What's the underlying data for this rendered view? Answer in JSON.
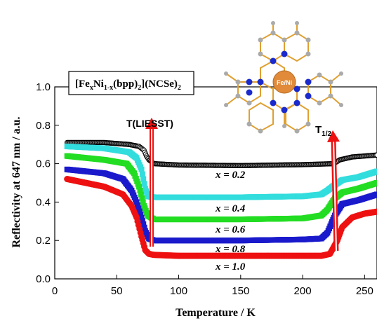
{
  "chart_data": {
    "type": "line",
    "title": "",
    "xlabel": "Temperature / K",
    "ylabel": "Reflectivity at 647 nm / a.u.",
    "xlim": [
      0,
      260
    ],
    "ylim": [
      0.0,
      1.0
    ],
    "xticks": [
      0,
      50,
      100,
      150,
      200,
      250
    ],
    "yticks": [
      0.0,
      0.2,
      0.4,
      0.6,
      0.8,
      1.0
    ],
    "grid": false,
    "legend_box": {
      "main": "[Fe",
      "sub1": "x",
      "mid1": "Ni",
      "sub2": "1-x",
      "mid2": "(bpp)",
      "sub3": "2",
      "mid3": "](NCSe)",
      "sub4": "2"
    },
    "molecule_label": "Fe/Ni",
    "annotations": {
      "liesst": "T(LIESST)",
      "thalf_main": "T",
      "thalf_sub": "1/2"
    },
    "series": [
      {
        "label": "x = 0.2",
        "color": "#000000",
        "marker": "open-circle",
        "points": [
          [
            10,
            0.71
          ],
          [
            40,
            0.71
          ],
          [
            60,
            0.7
          ],
          [
            68,
            0.69
          ],
          [
            72,
            0.67
          ],
          [
            74,
            0.64
          ],
          [
            76,
            0.62
          ],
          [
            78,
            0.61
          ],
          [
            80,
            0.6
          ],
          [
            100,
            0.593
          ],
          [
            150,
            0.59
          ],
          [
            200,
            0.595
          ],
          [
            225,
            0.6
          ],
          [
            230,
            0.62
          ],
          [
            240,
            0.635
          ],
          [
            260,
            0.645
          ]
        ]
      },
      {
        "label": "x = 0.4",
        "color": "#33dddd",
        "marker": "filled-square",
        "points": [
          [
            10,
            0.69
          ],
          [
            40,
            0.68
          ],
          [
            60,
            0.66
          ],
          [
            66,
            0.63
          ],
          [
            70,
            0.57
          ],
          [
            73,
            0.47
          ],
          [
            75,
            0.43
          ],
          [
            80,
            0.425
          ],
          [
            100,
            0.425
          ],
          [
            150,
            0.425
          ],
          [
            200,
            0.43
          ],
          [
            215,
            0.44
          ],
          [
            220,
            0.46
          ],
          [
            226,
            0.49
          ],
          [
            232,
            0.515
          ],
          [
            245,
            0.53
          ],
          [
            260,
            0.56
          ]
        ]
      },
      {
        "label": "x = 0.6",
        "color": "#22dd22",
        "marker": "filled-square",
        "points": [
          [
            10,
            0.64
          ],
          [
            40,
            0.62
          ],
          [
            58,
            0.6
          ],
          [
            64,
            0.55
          ],
          [
            68,
            0.48
          ],
          [
            72,
            0.38
          ],
          [
            75,
            0.33
          ],
          [
            80,
            0.31
          ],
          [
            100,
            0.31
          ],
          [
            150,
            0.31
          ],
          [
            200,
            0.315
          ],
          [
            215,
            0.33
          ],
          [
            220,
            0.36
          ],
          [
            226,
            0.42
          ],
          [
            232,
            0.45
          ],
          [
            245,
            0.47
          ],
          [
            260,
            0.5
          ]
        ]
      },
      {
        "label": "x = 0.8",
        "color": "#1a1acc",
        "marker": "filled-square",
        "points": [
          [
            10,
            0.57
          ],
          [
            40,
            0.55
          ],
          [
            55,
            0.52
          ],
          [
            62,
            0.46
          ],
          [
            66,
            0.4
          ],
          [
            70,
            0.32
          ],
          [
            73,
            0.25
          ],
          [
            76,
            0.21
          ],
          [
            80,
            0.2
          ],
          [
            100,
            0.2
          ],
          [
            150,
            0.2
          ],
          [
            200,
            0.205
          ],
          [
            215,
            0.21
          ],
          [
            220,
            0.24
          ],
          [
            226,
            0.33
          ],
          [
            232,
            0.39
          ],
          [
            245,
            0.41
          ],
          [
            260,
            0.44
          ]
        ]
      },
      {
        "label": "x = 1.0",
        "color": "#ee1111",
        "marker": "filled-circle",
        "points": [
          [
            10,
            0.52
          ],
          [
            40,
            0.48
          ],
          [
            55,
            0.44
          ],
          [
            62,
            0.38
          ],
          [
            66,
            0.32
          ],
          [
            70,
            0.22
          ],
          [
            73,
            0.15
          ],
          [
            76,
            0.13
          ],
          [
            80,
            0.125
          ],
          [
            100,
            0.12
          ],
          [
            150,
            0.12
          ],
          [
            200,
            0.12
          ],
          [
            215,
            0.12
          ],
          [
            222,
            0.13
          ],
          [
            228,
            0.2
          ],
          [
            232,
            0.27
          ],
          [
            240,
            0.32
          ],
          [
            250,
            0.34
          ],
          [
            260,
            0.35
          ]
        ]
      }
    ]
  }
}
